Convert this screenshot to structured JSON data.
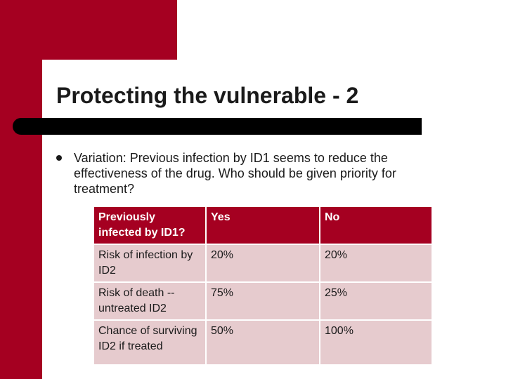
{
  "slide": {
    "title": "Protecting the vulnerable - 2",
    "bullet": "Variation: Previous infection by ID1 seems to reduce the effectiveness of the drug. Who should be given priority for treatment?"
  },
  "table": {
    "header": [
      "Previously infected by ID1?",
      "Yes",
      "No"
    ],
    "rows": [
      [
        "Risk of infection by ID2",
        "20%",
        "20%"
      ],
      [
        "Risk of death -- untreated ID2",
        "75%",
        "25%"
      ],
      [
        "Chance of surviving ID2 if treated",
        "50%",
        "100%"
      ]
    ]
  },
  "colors": {
    "accent": "#a50021",
    "table_body": "#e6cbce"
  }
}
